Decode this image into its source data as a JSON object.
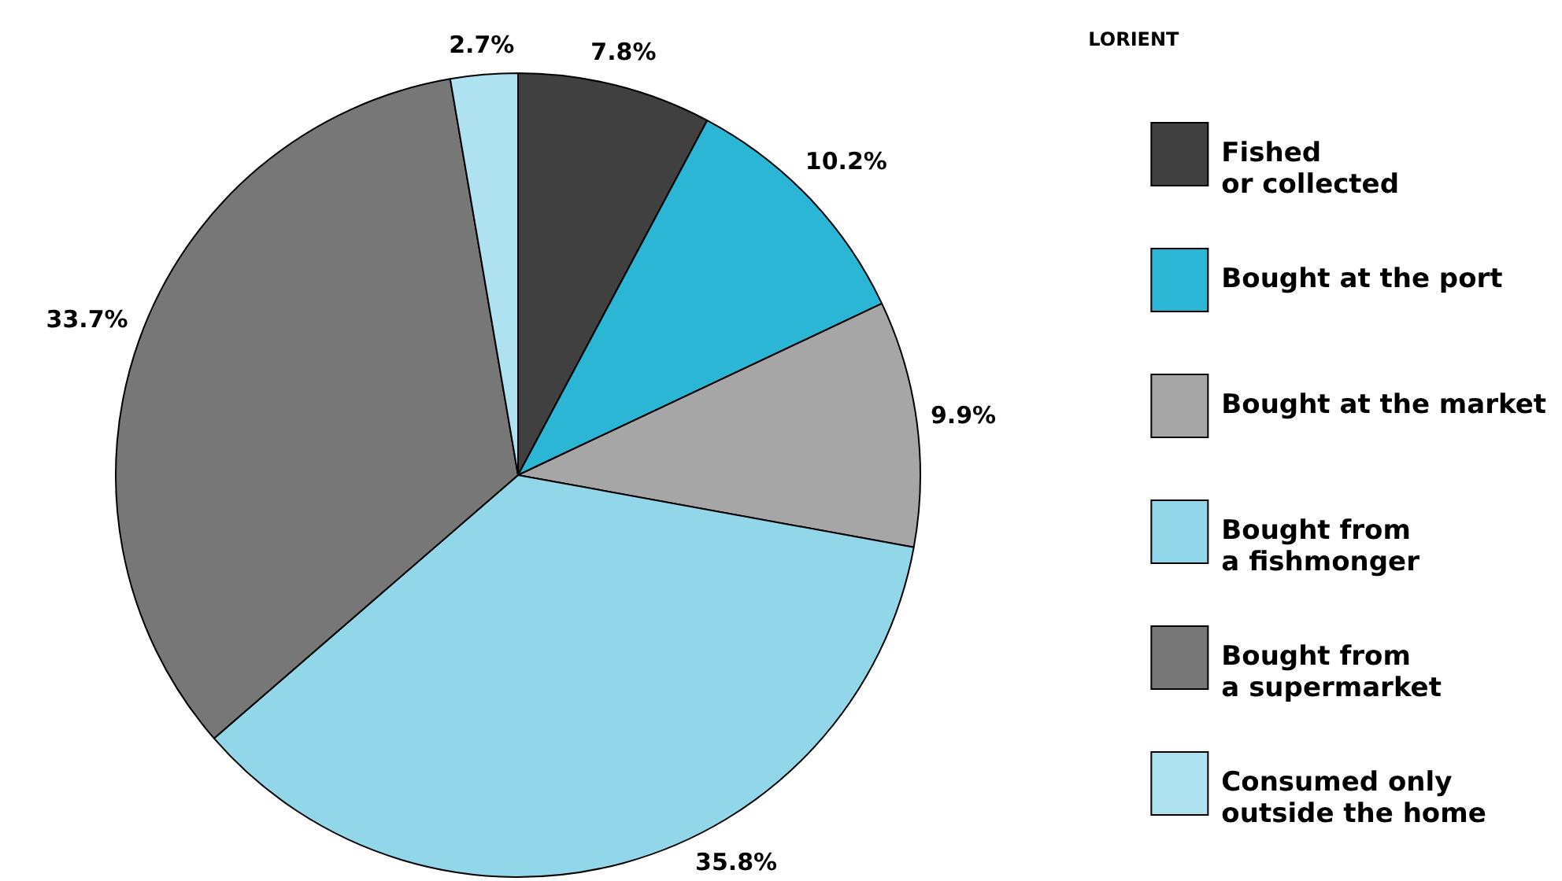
{
  "chart_data": {
    "type": "pie",
    "legend_title": "LORIENT",
    "categories": [
      "Fished\nor collected",
      "Bought at the port",
      "Bought at the market",
      "Bought from\na fishmonger",
      "Bought from\na supermarket",
      "Consumed only\noutside the home"
    ],
    "values": [
      7.8,
      10.2,
      9.9,
      35.8,
      33.7,
      2.7
    ],
    "colors": [
      "#404040",
      "#2cb6d6",
      "#a6a6a6",
      "#92d6ea",
      "#777777",
      "#aee2f0"
    ],
    "value_labels": [
      "7.8%",
      "10.2%",
      "9.9%",
      "35.8%",
      "33.7%",
      "2.7%"
    ],
    "legend": "right"
  }
}
